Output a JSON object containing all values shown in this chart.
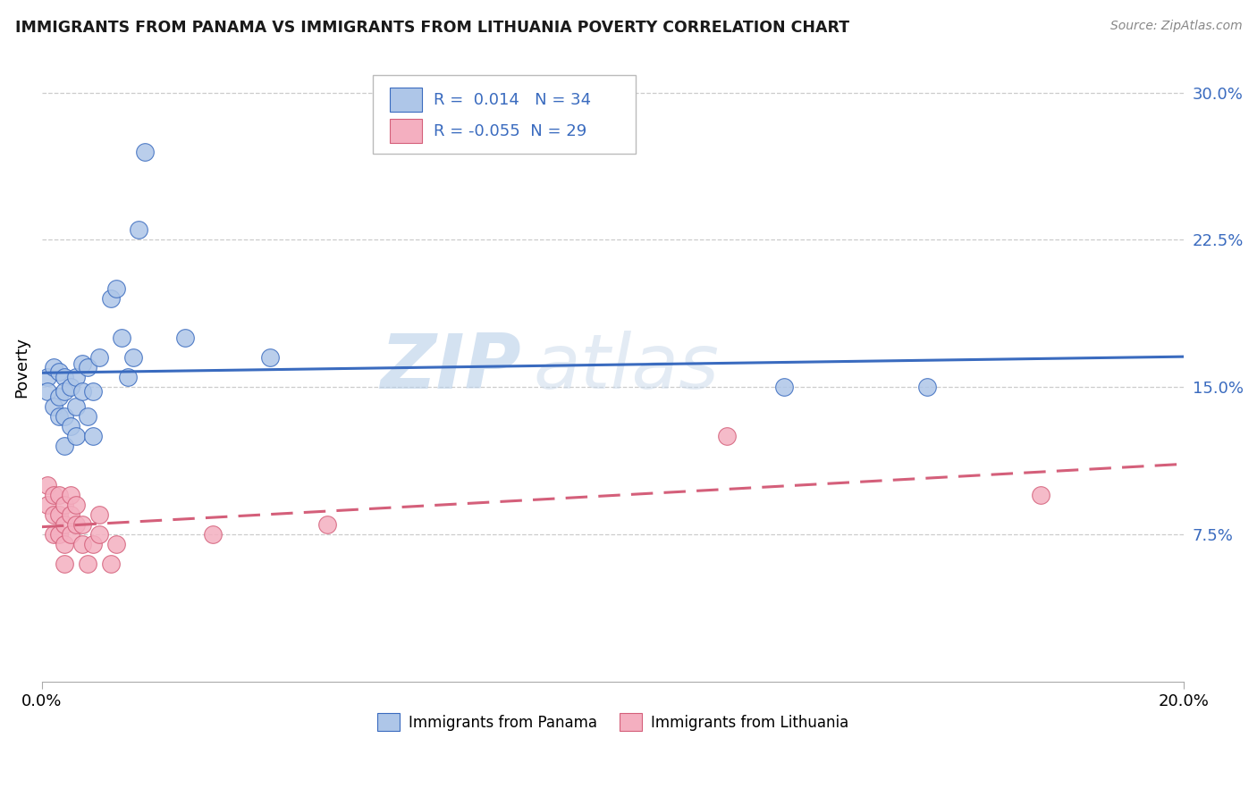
{
  "title": "IMMIGRANTS FROM PANAMA VS IMMIGRANTS FROM LITHUANIA POVERTY CORRELATION CHART",
  "source": "Source: ZipAtlas.com",
  "ylabel": "Poverty",
  "yticks": [
    0.075,
    0.15,
    0.225,
    0.3
  ],
  "ytick_labels": [
    "7.5%",
    "15.0%",
    "22.5%",
    "30.0%"
  ],
  "xlim": [
    0.0,
    0.2
  ],
  "ylim": [
    0.0,
    0.32
  ],
  "legend_R_panama": "0.014",
  "legend_N_panama": "34",
  "legend_R_lithuania": "-0.055",
  "legend_N_lithuania": "29",
  "panama_color": "#aec6e8",
  "lithuania_color": "#f4afc0",
  "panama_line_color": "#3a6bbf",
  "lithuania_line_color": "#d45f7a",
  "watermark_zip": "ZIP",
  "watermark_atlas": "atlas",
  "panama_x": [
    0.001,
    0.001,
    0.002,
    0.002,
    0.003,
    0.003,
    0.003,
    0.004,
    0.004,
    0.004,
    0.004,
    0.005,
    0.005,
    0.006,
    0.006,
    0.006,
    0.007,
    0.007,
    0.008,
    0.008,
    0.009,
    0.009,
    0.01,
    0.012,
    0.013,
    0.014,
    0.015,
    0.016,
    0.017,
    0.018,
    0.025,
    0.04,
    0.13,
    0.155
  ],
  "panama_y": [
    0.155,
    0.148,
    0.16,
    0.14,
    0.158,
    0.145,
    0.135,
    0.155,
    0.148,
    0.135,
    0.12,
    0.15,
    0.13,
    0.155,
    0.14,
    0.125,
    0.162,
    0.148,
    0.16,
    0.135,
    0.148,
    0.125,
    0.165,
    0.195,
    0.2,
    0.175,
    0.155,
    0.165,
    0.23,
    0.27,
    0.175,
    0.165,
    0.15,
    0.15
  ],
  "lithuania_x": [
    0.001,
    0.001,
    0.002,
    0.002,
    0.002,
    0.003,
    0.003,
    0.003,
    0.004,
    0.004,
    0.004,
    0.004,
    0.005,
    0.005,
    0.005,
    0.006,
    0.006,
    0.007,
    0.007,
    0.008,
    0.009,
    0.01,
    0.01,
    0.012,
    0.013,
    0.03,
    0.05,
    0.12,
    0.175
  ],
  "lithuania_y": [
    0.1,
    0.09,
    0.095,
    0.085,
    0.075,
    0.095,
    0.085,
    0.075,
    0.09,
    0.08,
    0.07,
    0.06,
    0.095,
    0.085,
    0.075,
    0.09,
    0.08,
    0.08,
    0.07,
    0.06,
    0.07,
    0.085,
    0.075,
    0.06,
    0.07,
    0.075,
    0.08,
    0.125,
    0.095
  ]
}
